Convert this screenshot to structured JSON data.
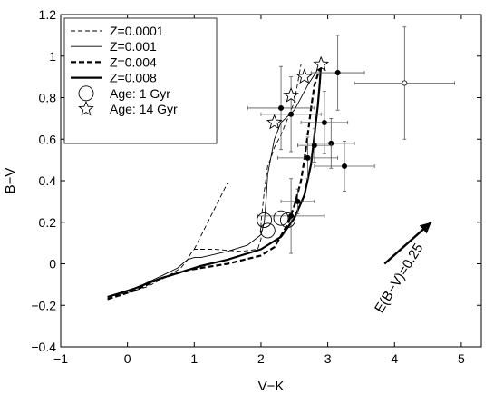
{
  "chart_data": {
    "type": "line",
    "title": "",
    "xlabel": "V−K",
    "ylabel": "B−V",
    "xlim": [
      -1,
      5.3
    ],
    "ylim": [
      -0.4,
      1.2
    ],
    "x_ticks": [
      -1,
      0,
      1,
      2,
      3,
      4,
      5
    ],
    "x_tick_labels": [
      "−1",
      "0",
      "1",
      "2",
      "3",
      "4",
      "5"
    ],
    "y_ticks": [
      -0.4,
      -0.2,
      0,
      0.2,
      0.4,
      0.6,
      0.8,
      1,
      1.2
    ],
    "y_tick_labels": [
      "−0.4",
      "−0.2",
      "0",
      "0.2",
      "0.4",
      "0.6",
      "0.8",
      "1",
      "1.2"
    ],
    "grid": false,
    "legend_position": "top-left",
    "series": [
      {
        "name": "Z=0.0001",
        "style": "thin-dashed",
        "x": [
          -0.3,
          0.0,
          0.3,
          0.6,
          0.8,
          0.9,
          0.95,
          1.0,
          1.3,
          1.7,
          1.95,
          2.0,
          2.0,
          2.05,
          2.1,
          2.15,
          2.2,
          2.3,
          2.5,
          2.6
        ],
        "y": [
          -0.16,
          -0.14,
          -0.11,
          -0.06,
          -0.02,
          0.02,
          0.05,
          0.07,
          0.07,
          0.06,
          0.07,
          0.12,
          0.2,
          0.35,
          0.47,
          0.51,
          0.56,
          0.62,
          0.78,
          0.96
        ]
      },
      {
        "name": "Z=0.0001",
        "style": "thin-dashed",
        "x": [
          1.0,
          1.5
        ],
        "y": [
          0.07,
          0.39
        ]
      },
      {
        "name": "Z=0.001",
        "style": "thin-solid",
        "x": [
          -0.3,
          0.1,
          0.5,
          0.75,
          0.9,
          1.0,
          1.1,
          1.5,
          1.8,
          2.0,
          2.05,
          2.08,
          2.1,
          2.2,
          2.3,
          2.5,
          2.7,
          2.9
        ],
        "y": [
          -0.16,
          -0.12,
          -0.06,
          -0.02,
          0.02,
          0.03,
          0.03,
          0.06,
          0.09,
          0.14,
          0.2,
          0.32,
          0.43,
          0.6,
          0.68,
          0.74,
          0.86,
          0.96
        ]
      },
      {
        "name": "Z=0.004",
        "style": "thick-dashed",
        "x": [
          -0.3,
          0.1,
          0.5,
          0.9,
          1.1,
          1.5,
          2.0,
          2.2,
          2.4,
          2.5,
          2.6,
          2.65,
          2.7,
          2.75,
          2.8,
          2.9
        ],
        "y": [
          -0.17,
          -0.13,
          -0.07,
          -0.03,
          -0.02,
          0.0,
          0.04,
          0.08,
          0.19,
          0.28,
          0.4,
          0.5,
          0.62,
          0.75,
          0.86,
          0.96
        ]
      },
      {
        "name": "Z=0.008",
        "style": "thick-solid",
        "x": [
          -0.3,
          0.1,
          0.5,
          0.9,
          1.1,
          1.5,
          2.0,
          2.3,
          2.5,
          2.65,
          2.75,
          2.8,
          2.85,
          2.88,
          2.9
        ],
        "y": [
          -0.16,
          -0.12,
          -0.07,
          -0.03,
          -0.01,
          0.02,
          0.07,
          0.13,
          0.22,
          0.33,
          0.48,
          0.62,
          0.76,
          0.87,
          0.96
        ]
      }
    ],
    "age_markers": [
      {
        "name": "Age: 1 Gyr",
        "marker": "circle",
        "points": [
          {
            "x": 2.05,
            "y": 0.21
          },
          {
            "x": 2.1,
            "y": 0.16
          },
          {
            "x": 2.3,
            "y": 0.22
          },
          {
            "x": 2.4,
            "y": 0.21
          }
        ]
      },
      {
        "name": "Age: 14 Gyr",
        "marker": "star",
        "points": [
          {
            "x": 2.2,
            "y": 0.68
          },
          {
            "x": 2.45,
            "y": 0.81
          },
          {
            "x": 2.65,
            "y": 0.9
          },
          {
            "x": 2.9,
            "y": 0.96
          }
        ]
      }
    ],
    "observations": [
      {
        "x": 2.3,
        "y": 0.75,
        "xerr": 0.5,
        "yerr": 0.2
      },
      {
        "x": 2.45,
        "y": 0.72,
        "xerr": 0.45,
        "yerr": 0.18
      },
      {
        "x": 3.15,
        "y": 0.92,
        "xerr": 0.4,
        "yerr": 0.18
      },
      {
        "x": 2.95,
        "y": 0.68,
        "xerr": 0.35,
        "yerr": 0.15
      },
      {
        "x": 3.05,
        "y": 0.58,
        "xerr": 0.35,
        "yerr": 0.12
      },
      {
        "x": 2.7,
        "y": 0.51,
        "xerr": 0.45,
        "yerr": 0.1
      },
      {
        "x": 3.25,
        "y": 0.47,
        "xerr": 0.45,
        "yerr": 0.12
      },
      {
        "x": 2.55,
        "y": 0.3,
        "xerr": 0.25,
        "yerr": 0.06
      },
      {
        "x": 2.45,
        "y": 0.23,
        "xerr": 0.5,
        "yerr": 0.18
      },
      {
        "x": 2.8,
        "y": 0.57,
        "xerr": 0.25,
        "yerr": 0.08
      }
    ],
    "outlier": {
      "x": 4.15,
      "y": 0.87,
      "xerr": 0.75,
      "yerr": 0.27,
      "marker": "open-circle"
    },
    "arrow": {
      "x0": 3.85,
      "y0": 0.0,
      "x1": 4.55,
      "y1": 0.2
    },
    "annotation": {
      "text": "E(B−V)=0.25",
      "x": 4.12,
      "y": -0.08,
      "rotation": -58
    }
  }
}
